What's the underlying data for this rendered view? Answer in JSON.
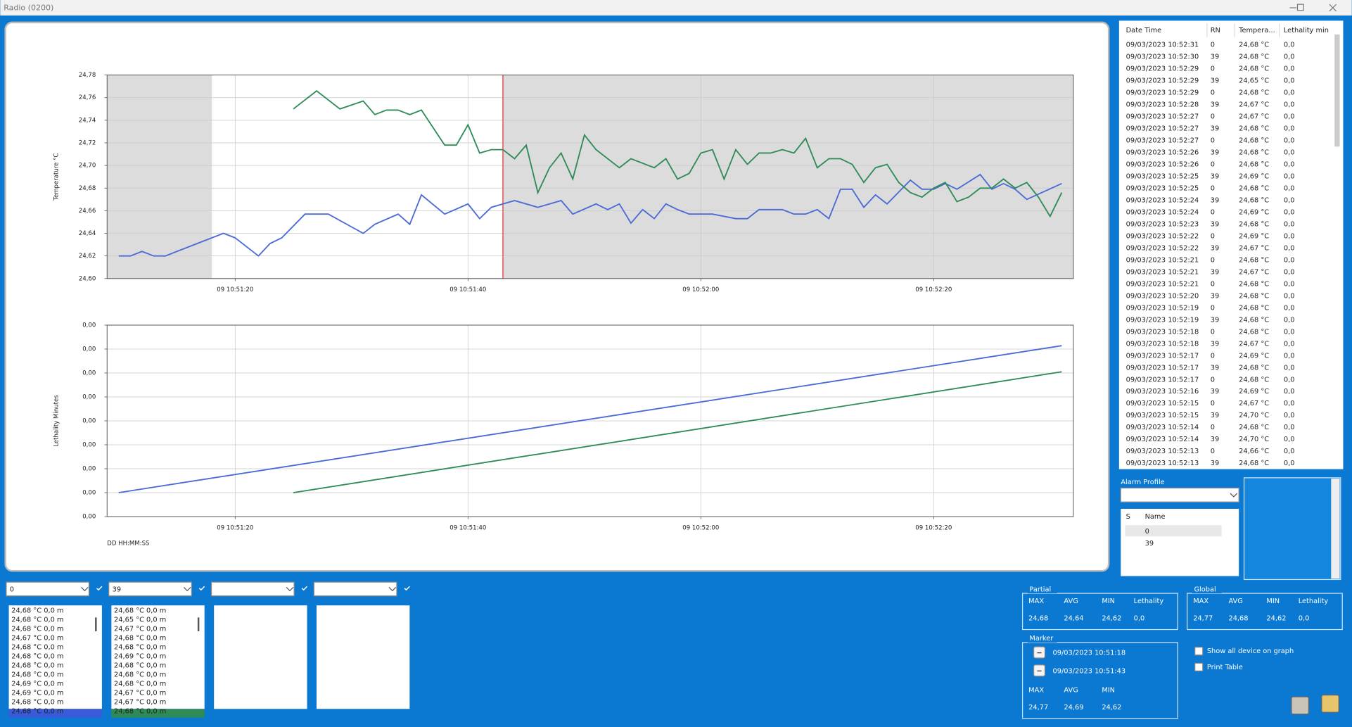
{
  "window": {
    "title": "Radio (0200)"
  },
  "charts": [
    {
      "type": "line",
      "y_label": "Temperature °C",
      "grid": true,
      "highlight_marker": true,
      "xlim": [
        "09 10:51:09",
        "09 10:52:32"
      ],
      "xticks": [
        "09 10:51:20",
        "09 10:51:40",
        "09 10:52:00",
        "09 10:52:20"
      ],
      "ylim": [
        24.6,
        24.78
      ],
      "yticks": [
        {
          "value": 24.6,
          "label": "24,60"
        },
        {
          "value": 24.62,
          "label": "24,62"
        },
        {
          "value": 24.64,
          "label": "24,64"
        },
        {
          "value": 24.66,
          "label": "24,66"
        },
        {
          "value": 24.68,
          "label": "24,68"
        },
        {
          "value": 24.7,
          "label": "24,70"
        },
        {
          "value": 24.72,
          "label": "24,72"
        },
        {
          "value": 24.74,
          "label": "24,74"
        },
        {
          "value": 24.76,
          "label": "24,76"
        },
        {
          "value": 24.78,
          "label": "24,78"
        }
      ],
      "series": [
        {
          "color": "#4a6ad6",
          "x": [
            "09 10:51:10",
            "09 10:51:11",
            "09 10:51:12",
            "09 10:51:13",
            "09 10:51:14",
            "09 10:51:19",
            "09 10:51:20",
            "09 10:51:22",
            "09 10:51:23",
            "09 10:51:24",
            "09 10:51:26",
            "09 10:51:28",
            "09 10:51:31",
            "09 10:51:32",
            "09 10:51:34",
            "09 10:51:35",
            "09 10:51:36",
            "09 10:51:38",
            "09 10:51:40",
            "09 10:51:41",
            "09 10:51:42",
            "09 10:51:44",
            "09 10:51:46",
            "09 10:51:48",
            "09 10:51:49",
            "09 10:51:51",
            "09 10:51:52",
            "09 10:51:53",
            "09 10:51:54",
            "09 10:51:55",
            "09 10:51:56",
            "09 10:51:57",
            "09 10:51:58",
            "09 10:51:59",
            "09 10:52:01",
            "09 10:52:03",
            "09 10:52:04",
            "09 10:52:05",
            "09 10:52:07",
            "09 10:52:08",
            "09 10:52:09",
            "09 10:52:10",
            "09 10:52:11",
            "09 10:52:12",
            "09 10:52:13",
            "09 10:52:14",
            "09 10:52:15",
            "09 10:52:16",
            "09 10:52:18",
            "09 10:52:19",
            "09 10:52:20",
            "09 10:52:21",
            "09 10:52:22",
            "09 10:52:24",
            "09 10:52:25",
            "09 10:52:26",
            "09 10:52:27",
            "09 10:52:28",
            "09 10:52:31"
          ],
          "values": [
            24.62,
            24.62,
            24.624,
            24.62,
            24.62,
            24.64,
            24.636,
            24.62,
            24.631,
            24.636,
            24.657,
            24.657,
            24.64,
            24.648,
            24.657,
            24.648,
            24.674,
            24.657,
            24.666,
            24.653,
            24.663,
            24.669,
            24.663,
            24.669,
            24.657,
            24.666,
            24.661,
            24.666,
            24.649,
            24.661,
            24.653,
            24.666,
            24.661,
            24.657,
            24.657,
            24.653,
            24.653,
            24.661,
            24.661,
            24.657,
            24.657,
            24.661,
            24.653,
            24.679,
            24.679,
            24.663,
            24.674,
            24.666,
            24.687,
            24.679,
            24.679,
            24.684,
            24.679,
            24.692,
            24.679,
            24.684,
            24.679,
            24.67,
            24.684
          ]
        },
        {
          "color": "#2e8b57",
          "x": [
            "09 10:51:25",
            "09 10:51:27",
            "09 10:51:29",
            "09 10:51:31",
            "09 10:51:32",
            "09 10:51:33",
            "09 10:51:34",
            "09 10:51:35",
            "09 10:51:36",
            "09 10:51:38",
            "09 10:51:39",
            "09 10:51:40",
            "09 10:51:41",
            "09 10:51:42",
            "09 10:51:43",
            "09 10:51:44",
            "09 10:51:45",
            "09 10:51:46",
            "09 10:51:47",
            "09 10:51:48",
            "09 10:51:49",
            "09 10:51:50",
            "09 10:51:51",
            "09 10:51:53",
            "09 10:51:54",
            "09 10:51:56",
            "09 10:51:57",
            "09 10:51:58",
            "09 10:51:59",
            "09 10:52:00",
            "09 10:52:01",
            "09 10:52:02",
            "09 10:52:03",
            "09 10:52:04",
            "09 10:52:05",
            "09 10:52:06",
            "09 10:52:07",
            "09 10:52:08",
            "09 10:52:09",
            "09 10:52:10",
            "09 10:52:11",
            "09 10:52:12",
            "09 10:52:13",
            "09 10:52:14",
            "09 10:52:15",
            "09 10:52:16",
            "09 10:52:17",
            "09 10:52:18",
            "09 10:52:19",
            "09 10:52:20",
            "09 10:52:21",
            "09 10:52:22",
            "09 10:52:23",
            "09 10:52:24",
            "09 10:52:25",
            "09 10:52:26",
            "09 10:52:27",
            "09 10:52:28",
            "09 10:52:29",
            "09 10:52:30",
            "09 10:52:31"
          ],
          "values": [
            24.75,
            24.766,
            24.75,
            24.757,
            24.745,
            24.749,
            24.749,
            24.745,
            24.749,
            24.718,
            24.718,
            24.736,
            24.711,
            24.714,
            24.714,
            24.706,
            24.718,
            24.676,
            24.698,
            24.711,
            24.688,
            24.727,
            24.714,
            24.698,
            24.706,
            24.698,
            24.706,
            24.688,
            24.693,
            24.711,
            24.714,
            24.688,
            24.714,
            24.701,
            24.711,
            24.711,
            24.714,
            24.711,
            24.724,
            24.698,
            24.706,
            24.706,
            24.701,
            24.685,
            24.698,
            24.701,
            24.685,
            24.676,
            24.672,
            24.68,
            24.685,
            24.668,
            24.672,
            24.68,
            24.68,
            24.688,
            24.68,
            24.685,
            24.672,
            24.655,
            24.676
          ]
        }
      ]
    },
    {
      "type": "line",
      "y_label": "Lethality Minutes",
      "x_label": "DD HH:MM:SS",
      "grid": true,
      "xlim": [
        "09 10:51:09",
        "09 10:52:32"
      ],
      "xticks": [
        "09 10:51:20",
        "09 10:51:40",
        "09 10:52:00",
        "09 10:52:20"
      ],
      "ylim": [
        0,
        0.008
      ],
      "yticks": [
        {
          "value": 0,
          "label": "0,00"
        },
        {
          "value": 0.001,
          "label": "0,00"
        },
        {
          "value": 0.002,
          "label": "0,00"
        },
        {
          "value": 0.003,
          "label": "0,00"
        },
        {
          "value": 0.004,
          "label": "0,00"
        },
        {
          "value": 0.005,
          "label": "0,00"
        },
        {
          "value": 0.006,
          "label": "0,00"
        },
        {
          "value": 0.007,
          "label": "0,00"
        },
        {
          "value": 0.008,
          "label": "0,00"
        }
      ],
      "series": [
        {
          "color": "#4a6ad6",
          "x": [
            "09 10:51:10",
            "09 10:52:31"
          ],
          "values": [
            0.001,
            0.00714
          ]
        },
        {
          "color": "#2e8b57",
          "x": [
            "09 10:51:25",
            "09 10:52:31"
          ],
          "values": [
            0.001,
            0.00605
          ]
        }
      ]
    }
  ],
  "table": {
    "columns": [
      "Date Time",
      "RN",
      "Tempera...",
      "Lethality min"
    ],
    "rows": [
      [
        "09/03/2023 10:52:31",
        "0",
        "24,68 °C",
        "0,0"
      ],
      [
        "09/03/2023 10:52:30",
        "39",
        "24,68 °C",
        "0,0"
      ],
      [
        "09/03/2023 10:52:29",
        "0",
        "24,68 °C",
        "0,0"
      ],
      [
        "09/03/2023 10:52:29",
        "39",
        "24,65 °C",
        "0,0"
      ],
      [
        "09/03/2023 10:52:29",
        "0",
        "24,68 °C",
        "0,0"
      ],
      [
        "09/03/2023 10:52:28",
        "39",
        "24,67 °C",
        "0,0"
      ],
      [
        "09/03/2023 10:52:27",
        "0",
        "24,67 °C",
        "0,0"
      ],
      [
        "09/03/2023 10:52:27",
        "39",
        "24,68 °C",
        "0,0"
      ],
      [
        "09/03/2023 10:52:27",
        "0",
        "24,68 °C",
        "0,0"
      ],
      [
        "09/03/2023 10:52:26",
        "39",
        "24,68 °C",
        "0,0"
      ],
      [
        "09/03/2023 10:52:26",
        "0",
        "24,68 °C",
        "0,0"
      ],
      [
        "09/03/2023 10:52:25",
        "39",
        "24,69 °C",
        "0,0"
      ],
      [
        "09/03/2023 10:52:25",
        "0",
        "24,68 °C",
        "0,0"
      ],
      [
        "09/03/2023 10:52:24",
        "39",
        "24,68 °C",
        "0,0"
      ],
      [
        "09/03/2023 10:52:24",
        "0",
        "24,69 °C",
        "0,0"
      ],
      [
        "09/03/2023 10:52:23",
        "39",
        "24,68 °C",
        "0,0"
      ],
      [
        "09/03/2023 10:52:22",
        "0",
        "24,69 °C",
        "0,0"
      ],
      [
        "09/03/2023 10:52:22",
        "39",
        "24,67 °C",
        "0,0"
      ],
      [
        "09/03/2023 10:52:21",
        "0",
        "24,68 °C",
        "0,0"
      ],
      [
        "09/03/2023 10:52:21",
        "39",
        "24,67 °C",
        "0,0"
      ],
      [
        "09/03/2023 10:52:21",
        "0",
        "24,68 °C",
        "0,0"
      ],
      [
        "09/03/2023 10:52:20",
        "39",
        "24,68 °C",
        "0,0"
      ],
      [
        "09/03/2023 10:52:19",
        "0",
        "24,68 °C",
        "0,0"
      ],
      [
        "09/03/2023 10:52:19",
        "39",
        "24,68 °C",
        "0,0"
      ],
      [
        "09/03/2023 10:52:18",
        "0",
        "24,68 °C",
        "0,0"
      ],
      [
        "09/03/2023 10:52:18",
        "39",
        "24,67 °C",
        "0,0"
      ],
      [
        "09/03/2023 10:52:17",
        "0",
        "24,69 °C",
        "0,0"
      ],
      [
        "09/03/2023 10:52:17",
        "39",
        "24,68 °C",
        "0,0"
      ],
      [
        "09/03/2023 10:52:17",
        "0",
        "24,68 °C",
        "0,0"
      ],
      [
        "09/03/2023 10:52:16",
        "39",
        "24,69 °C",
        "0,0"
      ],
      [
        "09/03/2023 10:52:15",
        "0",
        "24,67 °C",
        "0,0"
      ],
      [
        "09/03/2023 10:52:15",
        "39",
        "24,70 °C",
        "0,0"
      ],
      [
        "09/03/2023 10:52:14",
        "0",
        "24,68 °C",
        "0,0"
      ],
      [
        "09/03/2023 10:52:14",
        "39",
        "24,70 °C",
        "0,0"
      ],
      [
        "09/03/2023 10:52:13",
        "0",
        "24,66 °C",
        "0,0"
      ],
      [
        "09/03/2023 10:52:13",
        "39",
        "24,68 °C",
        "0,0"
      ]
    ]
  },
  "alarm_profile": {
    "label": "Alarm Profile",
    "columns": [
      "S",
      "Name"
    ],
    "items": [
      "0",
      "39"
    ]
  },
  "devices": [
    {
      "selected": "0",
      "readings": [
        "24,68 °C 0,0 m",
        "24,68 °C 0,0 m",
        "24,68 °C 0,0 m",
        "24,67 °C 0,0 m",
        "24,68 °C 0,0 m",
        "24,68 °C 0,0 m",
        "24,68 °C 0,0 m",
        "24,68 °C 0,0 m",
        "24,69 °C 0,0 m",
        "24,69 °C 0,0 m",
        "24,68 °C 0,0 m",
        "24,68 °C 0,0 m"
      ]
    },
    {
      "selected": "39",
      "readings": [
        "24,68 °C 0,0 m",
        "24,65 °C 0,0 m",
        "24,67 °C 0,0 m",
        "24,68 °C 0,0 m",
        "24,68 °C 0,0 m",
        "24,69 °C 0,0 m",
        "24,68 °C 0,0 m",
        "24,68 °C 0,0 m",
        "24,68 °C 0,0 m",
        "24,67 °C 0,0 m",
        "24,67 °C 0,0 m",
        "24,68 °C 0,0 m"
      ]
    }
  ],
  "partial": {
    "label": "Partial",
    "columns": [
      "MAX",
      "AVG",
      "MIN",
      "Lethality"
    ],
    "values": [
      "24,68",
      "24,64",
      "24,62",
      "0,0"
    ]
  },
  "global": {
    "label": "Global",
    "columns": [
      "MAX",
      "AVG",
      "MIN",
      "Lethality"
    ],
    "values": [
      "24,77",
      "24,68",
      "24,62",
      "0,0"
    ]
  },
  "marker": {
    "label": "Marker",
    "times": [
      "09/03/2023 10:51:18",
      "09/03/2023 10:51:43"
    ],
    "columns": [
      "MAX",
      "AVG",
      "MIN"
    ],
    "values": [
      "24,77",
      "24,69",
      "24,62"
    ]
  },
  "options": [
    "Show all device on graph",
    "Print Table"
  ]
}
